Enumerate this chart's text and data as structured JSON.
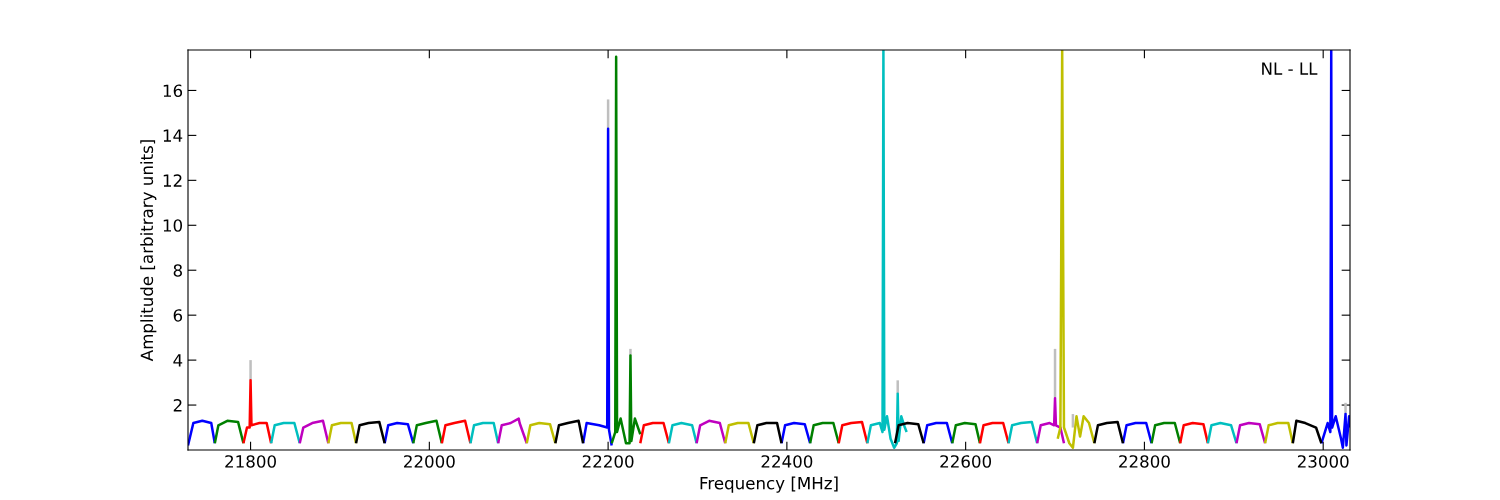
{
  "chart_data": {
    "type": "line",
    "xlabel": "Frequency [MHz]",
    "ylabel": "Amplitude [arbitrary units]",
    "annotations": [
      "NL - LL"
    ],
    "xlim": [
      21730,
      23030
    ],
    "ylim": [
      0,
      17.8
    ],
    "xticks": [
      21800,
      22000,
      22200,
      22400,
      22600,
      22800,
      23000
    ],
    "yticks": [
      2,
      4,
      6,
      8,
      10,
      12,
      14,
      16
    ],
    "series": [
      {
        "color": "#bfbfbf",
        "x": [
          21800,
          21800
        ],
        "values": [
          3.1,
          4.0
        ]
      },
      {
        "color": "#bfbfbf",
        "x": [
          22200,
          22200
        ],
        "values": [
          14.3,
          15.6
        ]
      },
      {
        "color": "#bfbfbf",
        "x": [
          22225,
          22225
        ],
        "values": [
          4.2,
          4.5
        ]
      },
      {
        "color": "#bfbfbf",
        "x": [
          22524,
          22524
        ],
        "values": [
          2.5,
          3.1
        ]
      },
      {
        "color": "#bfbfbf",
        "x": [
          22700,
          22700
        ],
        "values": [
          2.3,
          4.5
        ]
      },
      {
        "color": "#bfbfbf",
        "x": [
          22720,
          22720
        ],
        "values": [
          1.0,
          1.6
        ]
      },
      {
        "color": "#bfbfbf",
        "x": [
          23025,
          23025
        ],
        "values": [
          1.6,
          2.1
        ]
      },
      {
        "color": "#0000ff",
        "x": [
          21730,
          21736,
          21746,
          21756,
          21760
        ],
        "values": [
          0.2,
          1.2,
          1.3,
          1.2,
          0.3
        ]
      },
      {
        "color": "#0000ff",
        "x": [
          21950,
          21954,
          21964,
          21976,
          21982
        ],
        "values": [
          0.3,
          1.1,
          1.2,
          1.15,
          0.3
        ]
      },
      {
        "color": "#0000ff",
        "x": [
          22172,
          22176,
          22190,
          22199,
          22200,
          22201,
          22204
        ],
        "values": [
          0.3,
          1.2,
          1.1,
          1.0,
          14.3,
          0.9,
          0.2
        ]
      },
      {
        "color": "#0000ff",
        "x": [
          22394,
          22398,
          22408,
          22420,
          22426
        ],
        "values": [
          0.3,
          1.1,
          1.2,
          1.15,
          0.3
        ]
      },
      {
        "color": "#0000ff",
        "x": [
          22553,
          22557,
          22567,
          22579,
          22585
        ],
        "values": [
          0.3,
          1.1,
          1.2,
          1.2,
          0.3
        ]
      },
      {
        "color": "#0000ff",
        "x": [
          22776,
          22780,
          22790,
          22802,
          22808
        ],
        "values": [
          0.3,
          1.1,
          1.2,
          1.2,
          0.3
        ]
      },
      {
        "color": "#0000ff",
        "x": [
          22998,
          23005,
          23008,
          23009,
          23010,
          23014,
          23020,
          23022,
          23025,
          23026,
          23029,
          23030
        ],
        "values": [
          0.3,
          1.2,
          0.8,
          17.8,
          1.0,
          1.5,
          0.5,
          0.1,
          1.6,
          0.2,
          1.5,
          1.0
        ]
      },
      {
        "color": "#008000",
        "x": [
          21760,
          21764,
          21774,
          21786,
          21792
        ],
        "values": [
          0.3,
          1.1,
          1.3,
          1.25,
          0.3
        ]
      },
      {
        "color": "#008000",
        "x": [
          21982,
          21986,
          21996,
          22008,
          22014
        ],
        "values": [
          0.3,
          1.1,
          1.2,
          1.3,
          0.3
        ]
      },
      {
        "color": "#008000",
        "x": [
          22204,
          22208,
          22209,
          22210,
          22214,
          22220,
          22224,
          22225,
          22226,
          22230,
          22236
        ],
        "values": [
          0.3,
          0.8,
          17.5,
          0.8,
          1.4,
          0.3,
          0.3,
          4.2,
          0.4,
          1.4,
          0.7
        ]
      },
      {
        "color": "#008000",
        "x": [
          22426,
          22430,
          22440,
          22452,
          22458
        ],
        "values": [
          0.3,
          1.1,
          1.2,
          1.2,
          0.3
        ]
      },
      {
        "color": "#008000",
        "x": [
          22585,
          22589,
          22599,
          22611,
          22616
        ],
        "values": [
          0.3,
          1.1,
          1.2,
          1.15,
          0.3
        ]
      },
      {
        "color": "#008000",
        "x": [
          22808,
          22812,
          22822,
          22834,
          22840
        ],
        "values": [
          0.3,
          1.1,
          1.2,
          1.2,
          0.3
        ]
      },
      {
        "color": "#ff0000",
        "x": [
          21792,
          21796,
          21799,
          21800,
          21801,
          21810,
          21818,
          21823
        ],
        "values": [
          0.3,
          1.0,
          1.0,
          3.1,
          1.1,
          1.2,
          1.2,
          0.3
        ]
      },
      {
        "color": "#ff0000",
        "x": [
          22014,
          22018,
          22028,
          22040,
          22046
        ],
        "values": [
          0.3,
          1.1,
          1.2,
          1.3,
          0.3
        ]
      },
      {
        "color": "#ff0000",
        "x": [
          22236,
          22240,
          22250,
          22262,
          22268
        ],
        "values": [
          0.3,
          1.1,
          1.2,
          1.2,
          0.3
        ]
      },
      {
        "color": "#ff0000",
        "x": [
          22458,
          22462,
          22472,
          22484,
          22490
        ],
        "values": [
          0.3,
          1.1,
          1.2,
          1.25,
          0.3
        ]
      },
      {
        "color": "#ff0000",
        "x": [
          22616,
          22620,
          22630,
          22642,
          22648
        ],
        "values": [
          0.3,
          1.1,
          1.2,
          1.2,
          0.3
        ]
      },
      {
        "color": "#ff0000",
        "x": [
          22840,
          22844,
          22854,
          22866,
          22871
        ],
        "values": [
          0.3,
          1.1,
          1.2,
          1.15,
          0.3
        ]
      },
      {
        "color": "#00bfbf",
        "x": [
          21823,
          21827,
          21837,
          21849,
          21855
        ],
        "values": [
          0.3,
          1.1,
          1.2,
          1.2,
          0.3
        ]
      },
      {
        "color": "#00bfbf",
        "x": [
          22046,
          22050,
          22060,
          22072,
          22077
        ],
        "values": [
          0.3,
          1.1,
          1.2,
          1.2,
          0.3
        ]
      },
      {
        "color": "#00bfbf",
        "x": [
          22268,
          22272,
          22282,
          22294,
          22299
        ],
        "values": [
          0.3,
          1.1,
          1.2,
          1.1,
          0.3
        ]
      },
      {
        "color": "#00bfbf",
        "x": [
          22490,
          22494,
          22504,
          22507,
          22508,
          22509,
          22512,
          22516,
          22520,
          22523,
          22524,
          22525,
          22528,
          22532,
          22534
        ],
        "values": [
          0.3,
          1.1,
          1.2,
          0.8,
          17.8,
          0.9,
          1.5,
          0.5,
          0.1,
          0.3,
          2.5,
          0.4,
          1.5,
          1.0,
          0.8
        ]
      },
      {
        "color": "#00bfbf",
        "x": [
          22648,
          22652,
          22662,
          22674,
          22680
        ],
        "values": [
          0.3,
          1.1,
          1.2,
          1.25,
          0.3
        ]
      },
      {
        "color": "#00bfbf",
        "x": [
          22871,
          22875,
          22885,
          22897,
          22903
        ],
        "values": [
          0.3,
          1.1,
          1.2,
          1.1,
          0.3
        ]
      },
      {
        "color": "#bf00bf",
        "x": [
          21855,
          21859,
          21869,
          21881,
          21887
        ],
        "values": [
          0.3,
          1.0,
          1.2,
          1.3,
          0.3
        ]
      },
      {
        "color": "#bf00bf",
        "x": [
          22077,
          22081,
          22091,
          22100,
          22101,
          22109
        ],
        "values": [
          0.3,
          1.1,
          1.2,
          1.4,
          1.2,
          0.3
        ]
      },
      {
        "color": "#bf00bf",
        "x": [
          22299,
          22303,
          22313,
          22325,
          22331
        ],
        "values": [
          0.3,
          1.1,
          1.3,
          1.2,
          0.3
        ]
      },
      {
        "color": "#bf00bf",
        "x": [
          22680,
          22684,
          22694,
          22699,
          22700,
          22701,
          22706,
          22710
        ],
        "values": [
          0.3,
          1.1,
          1.2,
          1.1,
          2.3,
          1.1,
          1.0,
          0.3
        ]
      },
      {
        "color": "#bf00bf",
        "x": [
          22903,
          22907,
          22917,
          22929,
          22935
        ],
        "values": [
          0.3,
          1.1,
          1.2,
          1.15,
          0.3
        ]
      },
      {
        "color": "#bfbf00",
        "x": [
          21887,
          21891,
          21901,
          21913,
          21918
        ],
        "values": [
          0.3,
          1.1,
          1.2,
          1.2,
          0.3
        ]
      },
      {
        "color": "#bfbf00",
        "x": [
          22109,
          22113,
          22123,
          22135,
          22141
        ],
        "values": [
          0.3,
          1.1,
          1.2,
          1.15,
          0.3
        ]
      },
      {
        "color": "#bfbf00",
        "x": [
          22331,
          22335,
          22345,
          22357,
          22363
        ],
        "values": [
          0.3,
          1.1,
          1.2,
          1.2,
          0.3
        ]
      },
      {
        "color": "#bfbf00",
        "x": [
          22703,
          22706,
          22708,
          22710,
          22716,
          22720,
          22724,
          22728,
          22732,
          22738,
          22744
        ],
        "values": [
          0.5,
          1.0,
          17.8,
          1.0,
          0.3,
          0.1,
          1.5,
          0.6,
          1.5,
          1.2,
          0.3
        ]
      },
      {
        "color": "#bfbf00",
        "x": [
          22935,
          22939,
          22949,
          22961,
          22966
        ],
        "values": [
          0.3,
          1.1,
          1.2,
          1.2,
          0.3
        ]
      },
      {
        "color": "#000000",
        "x": [
          21918,
          21922,
          21932,
          21944,
          21950
        ],
        "values": [
          0.3,
          1.1,
          1.2,
          1.25,
          0.3
        ]
      },
      {
        "color": "#000000",
        "x": [
          22141,
          22145,
          22155,
          22167,
          22172
        ],
        "values": [
          0.3,
          1.1,
          1.2,
          1.3,
          0.3
        ]
      },
      {
        "color": "#000000",
        "x": [
          22363,
          22367,
          22377,
          22389,
          22394
        ],
        "values": [
          0.3,
          1.1,
          1.2,
          1.2,
          0.3
        ]
      },
      {
        "color": "#000000",
        "x": [
          22521,
          22525,
          22535,
          22547,
          22553
        ],
        "values": [
          0.3,
          1.1,
          1.2,
          1.15,
          0.3
        ]
      },
      {
        "color": "#000000",
        "x": [
          22744,
          22748,
          22758,
          22770,
          22776
        ],
        "values": [
          0.3,
          1.1,
          1.2,
          1.25,
          0.3
        ]
      },
      {
        "color": "#000000",
        "x": [
          22966,
          22970,
          22980,
          22992,
          22998
        ],
        "values": [
          0.3,
          1.3,
          1.2,
          1.0,
          0.3
        ]
      }
    ]
  }
}
